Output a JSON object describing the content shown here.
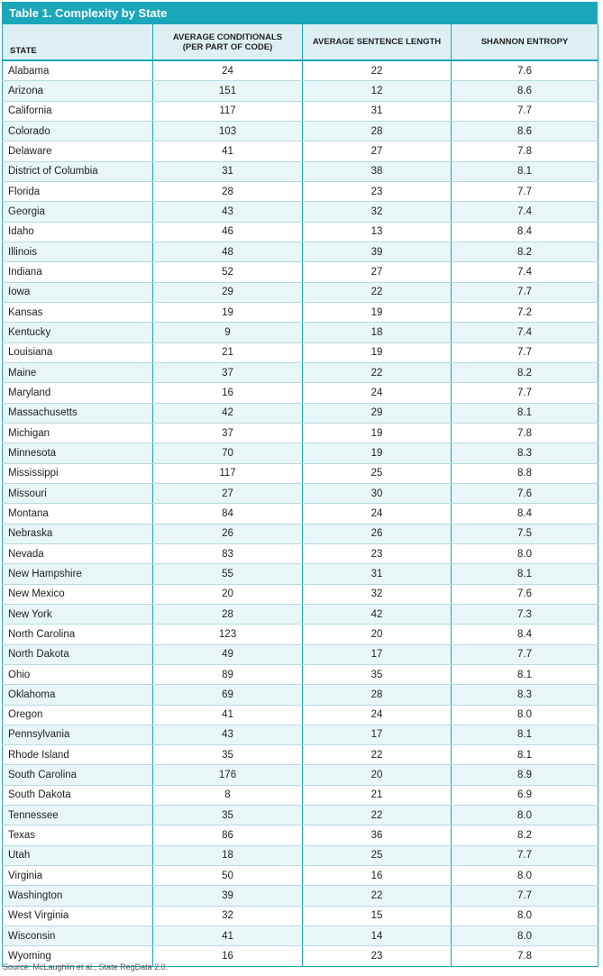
{
  "title": "Table 1. Complexity by State",
  "columns": {
    "state": "STATE",
    "conditionals_line1": "AVERAGE CONDITIONALS",
    "conditionals_line2": "(PER PART OF CODE)",
    "sentence": "AVERAGE SENTENCE LENGTH",
    "entropy": "SHANNON ENTROPY"
  },
  "rows": [
    {
      "state": "Alabama",
      "conditionals": "24",
      "sentence": "22",
      "entropy": "7.6"
    },
    {
      "state": "Arizona",
      "conditionals": "151",
      "sentence": "12",
      "entropy": "8.6"
    },
    {
      "state": "California",
      "conditionals": "117",
      "sentence": "31",
      "entropy": "7.7"
    },
    {
      "state": "Colorado",
      "conditionals": "103",
      "sentence": "28",
      "entropy": "8.6"
    },
    {
      "state": "Delaware",
      "conditionals": "41",
      "sentence": "27",
      "entropy": "7.8"
    },
    {
      "state": "District of Columbia",
      "conditionals": "31",
      "sentence": "38",
      "entropy": "8.1"
    },
    {
      "state": "Florida",
      "conditionals": "28",
      "sentence": "23",
      "entropy": "7.7"
    },
    {
      "state": "Georgia",
      "conditionals": "43",
      "sentence": "32",
      "entropy": "7.4"
    },
    {
      "state": "Idaho",
      "conditionals": "46",
      "sentence": "13",
      "entropy": "8.4"
    },
    {
      "state": "Illinois",
      "conditionals": "48",
      "sentence": "39",
      "entropy": "8.2"
    },
    {
      "state": "Indiana",
      "conditionals": "52",
      "sentence": "27",
      "entropy": "7.4"
    },
    {
      "state": "Iowa",
      "conditionals": "29",
      "sentence": "22",
      "entropy": "7.7"
    },
    {
      "state": "Kansas",
      "conditionals": "19",
      "sentence": "19",
      "entropy": "7.2"
    },
    {
      "state": "Kentucky",
      "conditionals": "9",
      "sentence": "18",
      "entropy": "7.4"
    },
    {
      "state": "Louisiana",
      "conditionals": "21",
      "sentence": "19",
      "entropy": "7.7"
    },
    {
      "state": "Maine",
      "conditionals": "37",
      "sentence": "22",
      "entropy": "8.2"
    },
    {
      "state": "Maryland",
      "conditionals": "16",
      "sentence": "24",
      "entropy": "7.7"
    },
    {
      "state": "Massachusetts",
      "conditionals": "42",
      "sentence": "29",
      "entropy": "8.1"
    },
    {
      "state": "Michigan",
      "conditionals": "37",
      "sentence": "19",
      "entropy": "7.8"
    },
    {
      "state": "Minnesota",
      "conditionals": "70",
      "sentence": "19",
      "entropy": "8.3"
    },
    {
      "state": "Mississippi",
      "conditionals": "117",
      "sentence": "25",
      "entropy": "8.8"
    },
    {
      "state": "Missouri",
      "conditionals": "27",
      "sentence": "30",
      "entropy": "7.6"
    },
    {
      "state": "Montana",
      "conditionals": "84",
      "sentence": "24",
      "entropy": "8.4"
    },
    {
      "state": "Nebraska",
      "conditionals": "26",
      "sentence": "26",
      "entropy": "7.5"
    },
    {
      "state": "Nevada",
      "conditionals": "83",
      "sentence": "23",
      "entropy": "8.0"
    },
    {
      "state": "New Hampshire",
      "conditionals": "55",
      "sentence": "31",
      "entropy": "8.1"
    },
    {
      "state": "New Mexico",
      "conditionals": "20",
      "sentence": "32",
      "entropy": "7.6"
    },
    {
      "state": "New York",
      "conditionals": "28",
      "sentence": "42",
      "entropy": "7.3"
    },
    {
      "state": "North Carolina",
      "conditionals": "123",
      "sentence": "20",
      "entropy": "8.4"
    },
    {
      "state": "North Dakota",
      "conditionals": "49",
      "sentence": "17",
      "entropy": "7.7"
    },
    {
      "state": "Ohio",
      "conditionals": "89",
      "sentence": "35",
      "entropy": "8.1"
    },
    {
      "state": "Oklahoma",
      "conditionals": "69",
      "sentence": "28",
      "entropy": "8.3"
    },
    {
      "state": "Oregon",
      "conditionals": "41",
      "sentence": "24",
      "entropy": "8.0"
    },
    {
      "state": "Pennsylvania",
      "conditionals": "43",
      "sentence": "17",
      "entropy": "8.1"
    },
    {
      "state": "Rhode Island",
      "conditionals": "35",
      "sentence": "22",
      "entropy": "8.1"
    },
    {
      "state": "South Carolina",
      "conditionals": "176",
      "sentence": "20",
      "entropy": "8.9"
    },
    {
      "state": "South Dakota",
      "conditionals": "8",
      "sentence": "21",
      "entropy": "6.9"
    },
    {
      "state": "Tennessee",
      "conditionals": "35",
      "sentence": "22",
      "entropy": "8.0"
    },
    {
      "state": "Texas",
      "conditionals": "86",
      "sentence": "36",
      "entropy": "8.2"
    },
    {
      "state": "Utah",
      "conditionals": "18",
      "sentence": "25",
      "entropy": "7.7"
    },
    {
      "state": "Virginia",
      "conditionals": "50",
      "sentence": "16",
      "entropy": "8.0"
    },
    {
      "state": "Washington",
      "conditionals": "39",
      "sentence": "22",
      "entropy": "7.7"
    },
    {
      "state": "West Virginia",
      "conditionals": "32",
      "sentence": "15",
      "entropy": "8.0"
    },
    {
      "state": "Wisconsin",
      "conditionals": "41",
      "sentence": "14",
      "entropy": "8.0"
    },
    {
      "state": "Wyoming",
      "conditionals": "16",
      "sentence": "23",
      "entropy": "7.8"
    }
  ],
  "source": "Source: McLaughlin et al., State RegData 2.0.",
  "colors": {
    "accent": "#1aa7b9",
    "header_bg": "#dff0f4",
    "alt_row": "#e9f6f8"
  }
}
